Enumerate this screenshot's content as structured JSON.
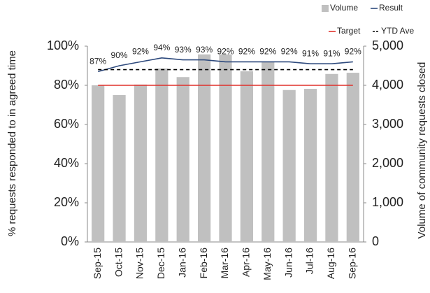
{
  "chart_data": {
    "type": "combo",
    "ylabel": "% requests responded to in agreed time",
    "y2label": "Volume of community requests closed",
    "categories": [
      "Sep-15",
      "Oct-15",
      "Nov-15",
      "Dec-15",
      "Jan-16",
      "Feb-16",
      "Mar-16",
      "Apr-16",
      "May-16",
      "Jun-16",
      "Jul-16",
      "Aug-16",
      "Sep-16"
    ],
    "series": [
      {
        "name": "Volume",
        "type": "bar",
        "axis": "y2",
        "color": "#c0c0c0",
        "values": [
          4000,
          3750,
          4020,
          4430,
          4210,
          4790,
          4790,
          4360,
          4590,
          3880,
          3910,
          4290,
          4320
        ]
      },
      {
        "name": "Result",
        "type": "line",
        "color": "#2e4a7d",
        "values": [
          87,
          90,
          92,
          94,
          93,
          93,
          92,
          92,
          92,
          92,
          91,
          91,
          92
        ],
        "value_labels": [
          "87%",
          "90%",
          "92%",
          "94%",
          "93%",
          "93%",
          "92%",
          "92%",
          "92%",
          "92%",
          "91%",
          "91%",
          "92%"
        ]
      },
      {
        "name": "Target",
        "type": "line",
        "color": "#e0302a",
        "values": [
          80,
          80,
          80,
          80,
          80,
          80,
          80,
          80,
          80,
          80,
          80,
          80,
          80
        ]
      },
      {
        "name": "YTD Ave",
        "type": "line",
        "dashed": true,
        "color": "#000000",
        "values": [
          88,
          88,
          88,
          88,
          88,
          88,
          88,
          88,
          88,
          88,
          88,
          88,
          88
        ]
      }
    ],
    "ylim": [
      0,
      100
    ],
    "yticks": [
      {
        "value": 0,
        "label": "0%"
      },
      {
        "value": 20,
        "label": "20%"
      },
      {
        "value": 40,
        "label": "40%"
      },
      {
        "value": 60,
        "label": "60%"
      },
      {
        "value": 80,
        "label": "80%"
      },
      {
        "value": 100,
        "label": "100%"
      }
    ],
    "y2lim": [
      0,
      5000
    ],
    "y2ticks": [
      0,
      {
        "value": 1000,
        "label": "1,000"
      },
      {
        "value": 2000,
        "label": "2,000"
      },
      {
        "value": 3000,
        "label": "3,000"
      },
      {
        "value": 4000,
        "label": "4,000"
      },
      {
        "value": 5000,
        "label": "5,000"
      }
    ],
    "legend": "top-right"
  }
}
